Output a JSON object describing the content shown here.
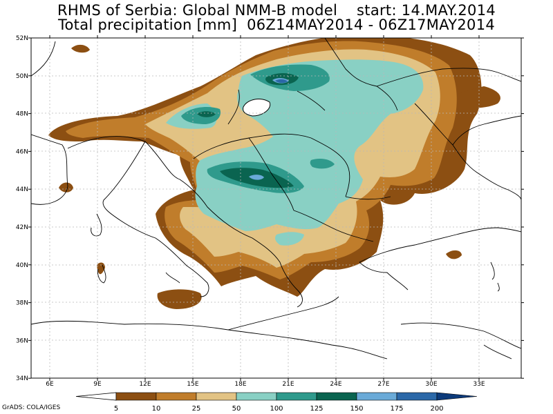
{
  "title_line1": "RHMS of Serbia: Global NMM-B model    start: 14.MAY.2014",
  "title_line2": "Total precipitation [mm]  06Z14MAY2014 - 06Z17MAY2014",
  "lon_labels": [
    "6E",
    "9E",
    "12E",
    "15E",
    "18E",
    "21E",
    "24E",
    "27E",
    "30E",
    "33E"
  ],
  "lat_labels": [
    "52N",
    "50N",
    "48N",
    "46N",
    "44N",
    "42N",
    "40N",
    "38N",
    "36N",
    "34N"
  ],
  "colorbar": {
    "levels": [
      "5",
      "10",
      "25",
      "50",
      "100",
      "125",
      "150",
      "175",
      "200"
    ],
    "colors": [
      "#8c4f12",
      "#c07d2b",
      "#e2c384",
      "#89d0c4",
      "#2f9a8c",
      "#0a6450",
      "#6aaad8",
      "#2b68a8",
      "#0c3a7a"
    ],
    "below_color": "#ffffff"
  },
  "credit": "GrADS: COLA/IGES"
}
